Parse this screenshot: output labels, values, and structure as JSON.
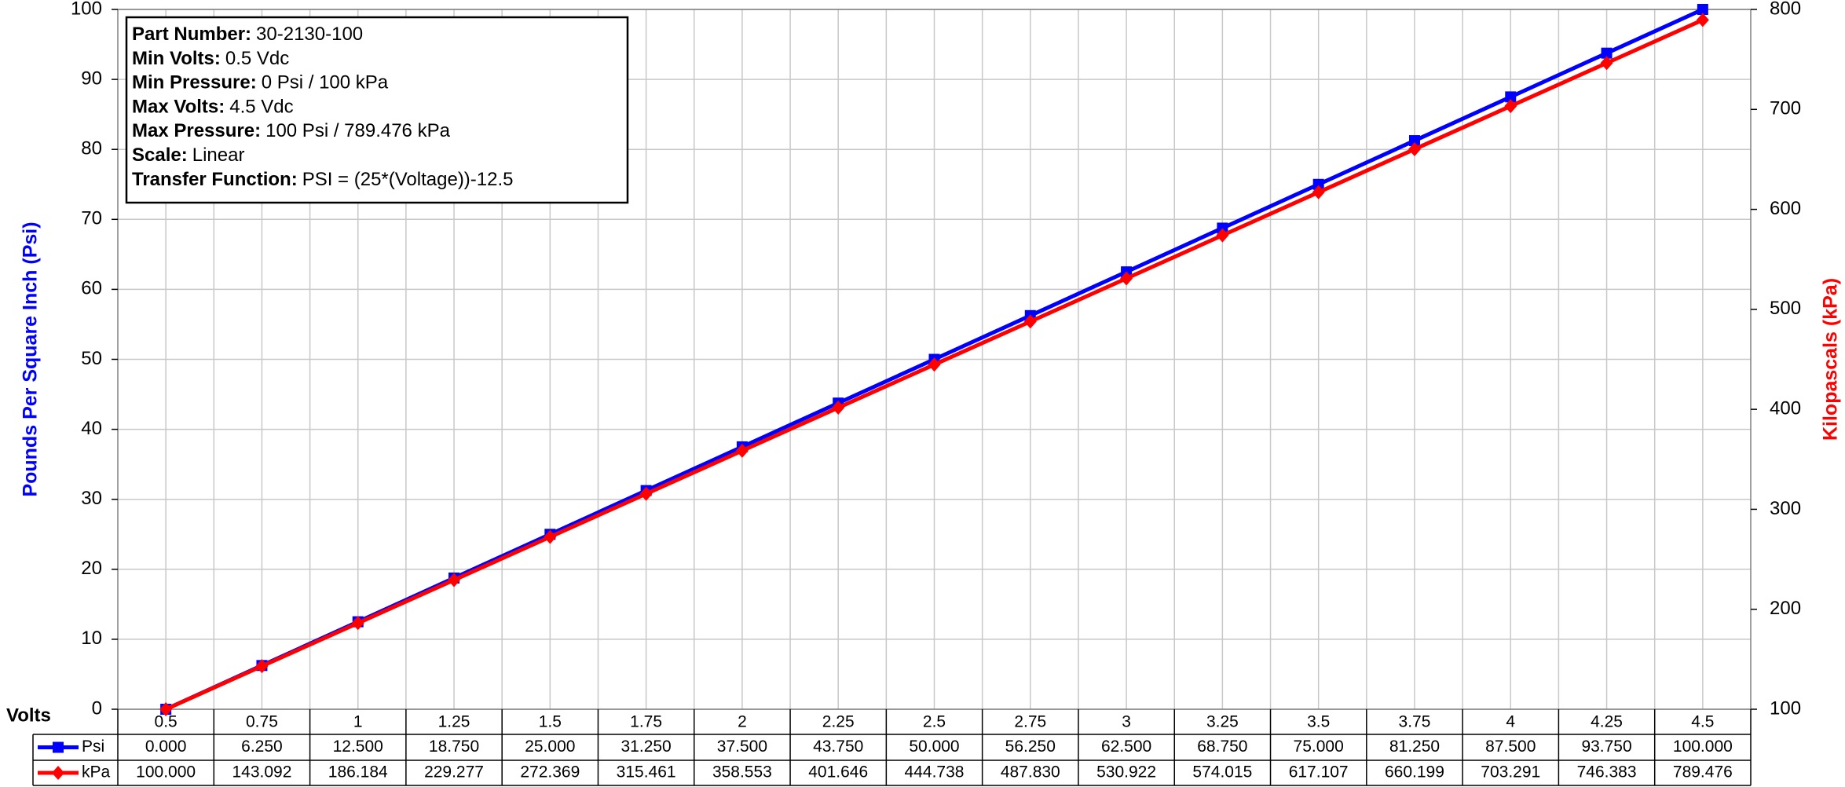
{
  "chart_data": {
    "type": "line",
    "info": [
      {
        "label": "Part Number:",
        "value": "30-2130-100"
      },
      {
        "label": "Min Volts:",
        "value": "0.5 Vdc"
      },
      {
        "label": "Min Pressure:",
        "value": "0 Psi / 100 kPa"
      },
      {
        "label": "Max Volts:",
        "value": "4.5 Vdc"
      },
      {
        "label": "Max Pressure:",
        "value": "100 Psi / 789.476 kPa"
      },
      {
        "label": "Scale:",
        "value": "Linear"
      },
      {
        "label": "Transfer Function:",
        "value": "PSI = (25*(Voltage))-12.5"
      }
    ],
    "x_label": "Volts",
    "y_label": "Pounds Per Square Inch (Psi)",
    "y2_label": "Kilopascals (kPa)",
    "categories": [
      "0.5",
      "0.75",
      "1",
      "1.25",
      "1.5",
      "1.75",
      "2",
      "2.25",
      "2.5",
      "2.75",
      "3",
      "3.25",
      "3.5",
      "3.75",
      "4",
      "4.25",
      "4.5"
    ],
    "series": [
      {
        "name": "Psi",
        "color": "#0000ff",
        "marker": "square",
        "axis": "y",
        "values": [
          0,
          6.25,
          12.5,
          18.75,
          25,
          31.25,
          37.5,
          43.75,
          50,
          56.25,
          62.5,
          68.75,
          75,
          81.25,
          87.5,
          93.75,
          100
        ],
        "value_labels": [
          "0.000",
          "6.250",
          "12.500",
          "18.750",
          "25.000",
          "31.250",
          "37.500",
          "43.750",
          "50.000",
          "56.250",
          "62.500",
          "68.750",
          "75.000",
          "81.250",
          "87.500",
          "93.750",
          "100.000"
        ]
      },
      {
        "name": "kPa",
        "color": "#ff0000",
        "marker": "diamond",
        "axis": "y2",
        "values": [
          100,
          143.092,
          186.184,
          229.277,
          272.369,
          315.461,
          358.553,
          401.646,
          444.738,
          487.83,
          530.922,
          574.015,
          617.107,
          660.199,
          703.291,
          746.383,
          789.476
        ],
        "value_labels": [
          "100.000",
          "143.092",
          "186.184",
          "229.277",
          "272.369",
          "315.461",
          "358.553",
          "401.646",
          "444.738",
          "487.830",
          "530.922",
          "574.015",
          "617.107",
          "660.199",
          "703.291",
          "746.383",
          "789.476"
        ]
      }
    ],
    "ylim": [
      0,
      100
    ],
    "yticks": [
      0,
      10,
      20,
      30,
      40,
      50,
      60,
      70,
      80,
      90,
      100
    ],
    "y2lim": [
      100,
      800
    ],
    "y2ticks": [
      100,
      200,
      300,
      400,
      500,
      600,
      700,
      800
    ],
    "grid": true
  }
}
